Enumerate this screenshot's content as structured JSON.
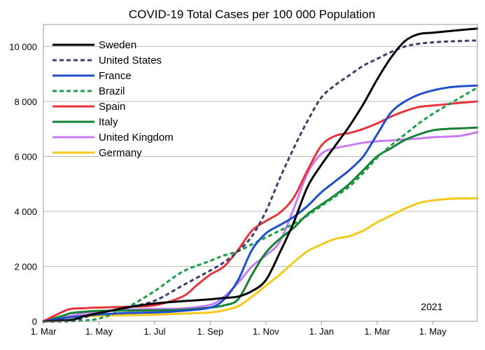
{
  "chart_data": {
    "type": "line",
    "title": "COVID-19 Total Cases per 100 000 Population",
    "xlabel": "",
    "ylabel": "",
    "annotation": "2021",
    "x_ticks": [
      "1. Mar",
      "1. May",
      "1. Jul",
      "1. Sep",
      "1. Nov",
      "1. Jan",
      "1. Mar",
      "1. May"
    ],
    "y_ticks": [
      "0",
      "2 000",
      "4 000",
      "6 000",
      "8 000",
      "10 000"
    ],
    "ylim": [
      0,
      10800
    ],
    "x_unit": "months since 1. Mar 2020",
    "xlim": [
      0,
      15.6
    ],
    "grid": "horizontal",
    "legend_position": "top-left",
    "series": [
      {
        "name": "Sweden",
        "color": "#000000",
        "style": "solid",
        "x": [
          0,
          1,
          1.5,
          2,
          3,
          4,
          5,
          6,
          6.5,
          7,
          7.5,
          8,
          8.5,
          9,
          9.5,
          10,
          10.5,
          11,
          11.5,
          12,
          12.5,
          13,
          13.5,
          14,
          14.5,
          15,
          15.6
        ],
        "y": [
          0,
          50,
          200,
          300,
          500,
          650,
          730,
          800,
          850,
          900,
          1100,
          1500,
          2500,
          3600,
          4900,
          5700,
          6400,
          7100,
          7900,
          8800,
          9600,
          10200,
          10450,
          10500,
          10550,
          10600,
          10650
        ]
      },
      {
        "name": "United States",
        "color": "#3d3d6b",
        "style": "dashed",
        "x": [
          0,
          1,
          1.5,
          2,
          3,
          4,
          5,
          6,
          6.5,
          7,
          7.5,
          8,
          8.5,
          9,
          9.5,
          10,
          10.5,
          11,
          11.5,
          12,
          12.5,
          13,
          13.5,
          14,
          14.5,
          15,
          15.6
        ],
        "y": [
          0,
          10,
          150,
          300,
          500,
          750,
          1300,
          1850,
          2150,
          2550,
          3100,
          4000,
          5200,
          6300,
          7300,
          8150,
          8600,
          8950,
          9300,
          9550,
          9800,
          10000,
          10100,
          10150,
          10180,
          10200,
          10220
        ]
      },
      {
        "name": "France",
        "color": "#1c4fc9",
        "style": "solid",
        "x": [
          0,
          1,
          2,
          3,
          4,
          5,
          6,
          6.5,
          7,
          7.5,
          8,
          8.5,
          9,
          9.5,
          10,
          10.5,
          11,
          11.5,
          12,
          12.5,
          13,
          13.5,
          14,
          14.5,
          15,
          15.6
        ],
        "y": [
          0,
          150,
          250,
          300,
          320,
          380,
          500,
          800,
          1500,
          2600,
          3200,
          3500,
          3800,
          4200,
          4700,
          5100,
          5500,
          6000,
          6800,
          7600,
          8000,
          8250,
          8400,
          8500,
          8550,
          8580
        ]
      },
      {
        "name": "Brazil",
        "color": "#1a9e4a",
        "style": "dashed",
        "x": [
          0,
          1,
          2,
          3,
          4,
          5,
          6,
          6.5,
          7,
          7.5,
          8,
          8.5,
          9,
          9.5,
          10,
          10.5,
          11,
          11.5,
          12,
          12.5,
          13,
          13.5,
          14,
          14.5,
          15,
          15.6
        ],
        "y": [
          0,
          5,
          100,
          500,
          1100,
          1800,
          2200,
          2400,
          2550,
          2800,
          3050,
          3300,
          3550,
          3850,
          4200,
          4550,
          4900,
          5400,
          5950,
          6400,
          6800,
          7200,
          7550,
          7850,
          8150,
          8500
        ]
      },
      {
        "name": "Spain",
        "color": "#e8343c",
        "style": "solid",
        "x": [
          0,
          0.7,
          1,
          1.5,
          2,
          3,
          4,
          5,
          5.5,
          6,
          6.5,
          7,
          7.5,
          8,
          8.5,
          9,
          9.5,
          10,
          10.5,
          11,
          11.5,
          12,
          12.5,
          13,
          13.5,
          14,
          14.5,
          15,
          15.6
        ],
        "y": [
          0,
          350,
          450,
          480,
          500,
          530,
          580,
          900,
          1300,
          1700,
          2000,
          2600,
          3300,
          3650,
          3950,
          4500,
          5500,
          6400,
          6750,
          6850,
          7000,
          7200,
          7450,
          7650,
          7800,
          7850,
          7900,
          7950,
          8000
        ]
      },
      {
        "name": "Italy",
        "color": "#168033",
        "style": "solid",
        "x": [
          0,
          0.7,
          1,
          1.5,
          2,
          3,
          4,
          5,
          6,
          6.5,
          7,
          7.5,
          8,
          8.5,
          9,
          9.5,
          10,
          10.5,
          11,
          11.5,
          12,
          12.5,
          13,
          13.5,
          14,
          14.5,
          15,
          15.6
        ],
        "y": [
          0,
          200,
          300,
          350,
          380,
          390,
          400,
          420,
          500,
          580,
          800,
          1700,
          2500,
          3000,
          3400,
          3900,
          4250,
          4600,
          5000,
          5500,
          6000,
          6300,
          6600,
          6800,
          6950,
          7000,
          7020,
          7050
        ]
      },
      {
        "name": "United Kingdom",
        "color": "#c77cf5",
        "style": "solid",
        "x": [
          0,
          1,
          1.5,
          2,
          3,
          4,
          5,
          6,
          6.5,
          7,
          7.5,
          8,
          8.5,
          9,
          9.5,
          10,
          10.5,
          11,
          11.5,
          12,
          12.5,
          13,
          13.5,
          14,
          14.5,
          15,
          15.6
        ],
        "y": [
          0,
          200,
          300,
          350,
          420,
          450,
          470,
          600,
          900,
          1400,
          2000,
          2400,
          2900,
          4100,
          5400,
          6100,
          6300,
          6400,
          6500,
          6550,
          6580,
          6620,
          6650,
          6700,
          6720,
          6750,
          6880
        ]
      },
      {
        "name": "Germany",
        "color": "#f5c91a",
        "style": "solid",
        "x": [
          0,
          1,
          2,
          3,
          4,
          5,
          6,
          6.5,
          7,
          7.5,
          8,
          8.5,
          9,
          9.5,
          10,
          10.5,
          11,
          11.5,
          12,
          12.5,
          13,
          13.5,
          14,
          14.5,
          15,
          15.6
        ],
        "y": [
          0,
          150,
          200,
          220,
          240,
          280,
          320,
          400,
          550,
          900,
          1300,
          1700,
          2150,
          2550,
          2800,
          3000,
          3100,
          3300,
          3600,
          3850,
          4100,
          4300,
          4400,
          4450,
          4470,
          4480
        ]
      }
    ]
  }
}
